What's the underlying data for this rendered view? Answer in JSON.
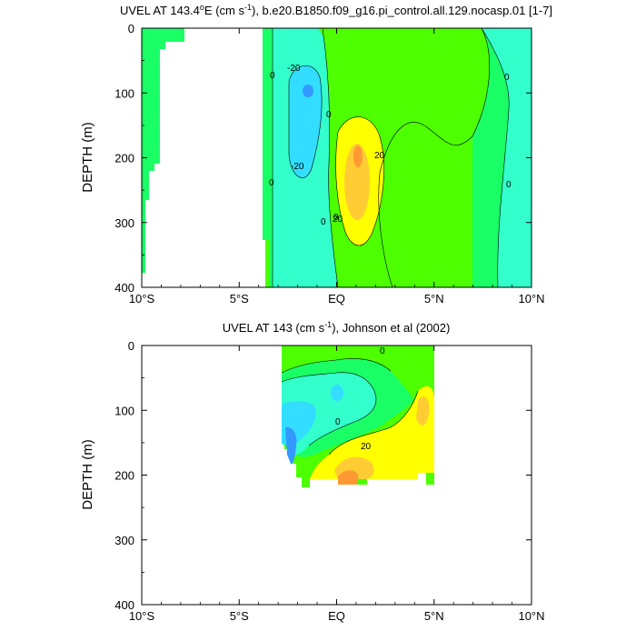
{
  "chart_data": [
    {
      "type": "heatmap",
      "title_prefix": "UVEL AT 143.4",
      "title_sup": "o",
      "title_mid": "E (cm s",
      "title_sup2": "-1",
      "title_end": "), b.e20.B1850.f09_g16.pi_control.all.129.nocasp.01 [1-7]",
      "ylabel": "DEPTH (m)",
      "xlim": [
        -10,
        10
      ],
      "ylim": [
        400,
        0
      ],
      "xticks": [
        "10°S",
        "5°S",
        "EQ",
        "5°N",
        "10°N"
      ],
      "yticks": [
        "0",
        "100",
        "200",
        "300",
        "400"
      ],
      "contour_labels": [
        "-20",
        "-20",
        "0",
        "0",
        "0",
        "0",
        "0",
        "20",
        "20",
        "0",
        "0"
      ],
      "colors": {
        "positive_weak": "#4dff00",
        "near_zero": "#1aff66",
        "neg_weak": "#33ffcc",
        "neg_mod": "#33ddff",
        "neg_strong": "#3399ff",
        "pos_mod": "#ffff00",
        "pos_strong": "#ffcc33",
        "pos_max": "#ff9933"
      }
    },
    {
      "type": "heatmap",
      "title_prefix": "UVEL AT 143 (cm s",
      "title_sup": "-1",
      "title_end": "), Johnson et al (2002)",
      "ylabel": "DEPTH (m)",
      "xlim": [
        -10,
        10
      ],
      "ylim": [
        400,
        0
      ],
      "xticks": [
        "10°S",
        "5°S",
        "EQ",
        "5°N",
        "10°N"
      ],
      "yticks": [
        "0",
        "100",
        "200",
        "300",
        "400"
      ],
      "contour_labels": [
        "0",
        "0",
        "20"
      ]
    }
  ]
}
